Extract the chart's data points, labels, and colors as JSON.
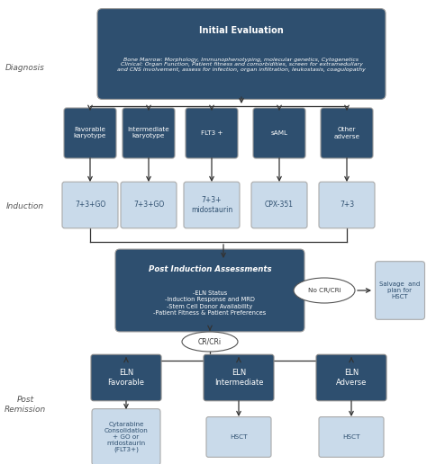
{
  "dark_blue": "#2e4f6f",
  "light_blue": "#c9daea",
  "white": "#ffffff",
  "bg_color": "#ffffff",
  "label_color": "#555555",
  "figsize": [
    4.74,
    5.16
  ],
  "dpi": 100,
  "initial_eval_title": "Initial Evaluation",
  "initial_eval_body": "Bone Marrow: Morphology, Immunophenotyping, molecular genetics, Cytogenetics\nClinical: Organ Function, Patient fitness and comorbidities, screen for extramedullary\nand CNS involvement, assess for infection, organ infiltration, leukostasis, coagulopathy",
  "karyotype_boxes": [
    "Favorable\nkaryotype",
    "Intermediate\nkaryotype",
    "FLT3 +",
    "sAML",
    "Other\nadverse"
  ],
  "induction_boxes": [
    "7+3+GO",
    "7+3+GO",
    "7+3+\nmidostaurin",
    "CPX-351",
    "7+3"
  ],
  "post_induction_title": "Post Induction Assessments",
  "post_induction_body": "-ELN Status\n-Induction Response and MRD\n-Stem Cell Donor Availability\n-Patient Fitness & Patient Preferences",
  "no_cr_label": "No CR/CRi",
  "salvage_label": "Salvage  and\nplan for\nHSCT",
  "cr_label": "CR/CRi",
  "eln_boxes": [
    "ELN\nFavorable",
    "ELN\nIntermediate",
    "ELN\nAdverse"
  ],
  "post_rem_boxes": [
    "Cytarabine\nConsolidation\n+ GO or\nmidostaurin\n(FLT3+)",
    "HSCT",
    "HSCT"
  ],
  "diagnosis_label": "Diagnosis",
  "induction_label": "Induction",
  "post_remission_label": "Post Remission"
}
